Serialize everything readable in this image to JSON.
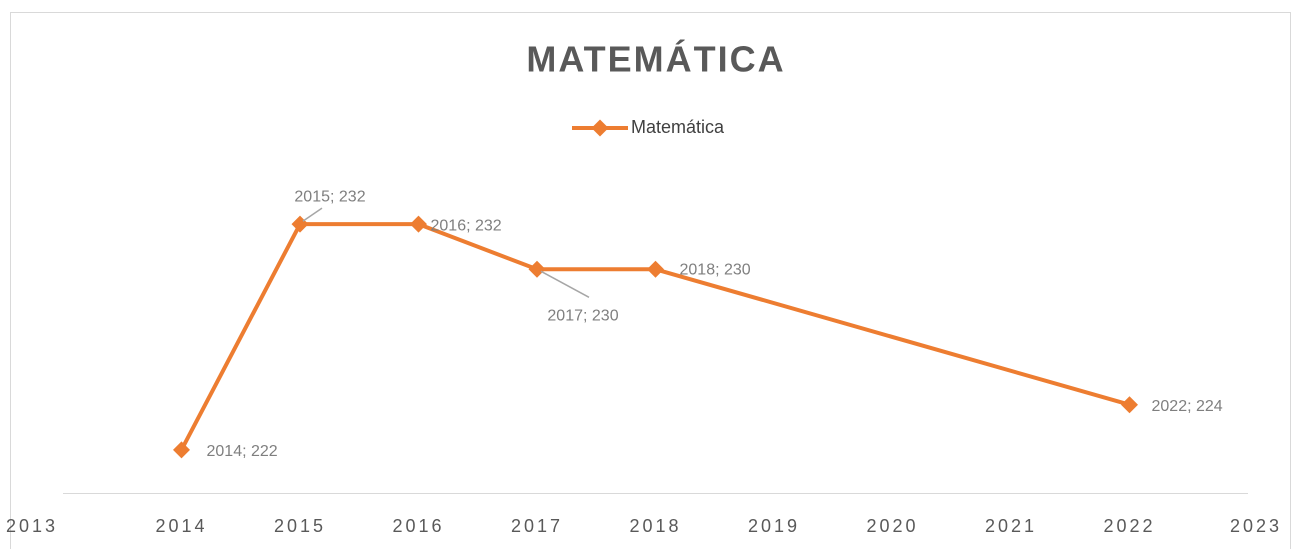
{
  "chart_data": {
    "type": "line",
    "title": "MATEMÁTICA",
    "x": [
      2014,
      2015,
      2016,
      2017,
      2018,
      2022
    ],
    "series": [
      {
        "name": "Matemática",
        "color": "#ed7d31",
        "values": [
          222,
          232,
          232,
          230,
          230,
          224
        ],
        "value_labels": [
          "2014; 222",
          "2015; 232",
          "2016; 232",
          "2017; 230",
          "2018; 230",
          "2022; 224"
        ]
      }
    ],
    "xlim": [
      2013,
      2023
    ],
    "xticks": [
      2013,
      2014,
      2015,
      2016,
      2017,
      2018,
      2019,
      2020,
      2021,
      2022,
      2023
    ],
    "ylim": [
      220,
      234
    ],
    "grid": false,
    "legend": "top"
  }
}
